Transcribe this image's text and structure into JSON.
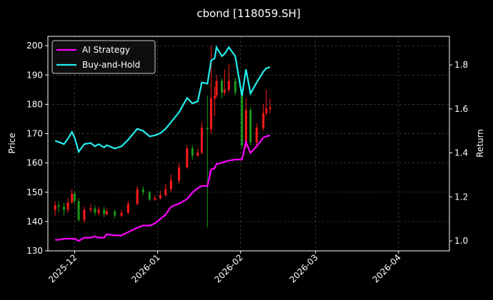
{
  "chart_data": {
    "type": "candlestick",
    "title": "cbond [118059.SH]",
    "ylabel": "Price",
    "y2label": "Return",
    "x": [
      2.7,
      4,
      6,
      7.5,
      9,
      10,
      11.5,
      13.6,
      16,
      17.6,
      19,
      21,
      22,
      25,
      27.5,
      30,
      33.4,
      35.6,
      38,
      40,
      42,
      44,
      46,
      49,
      52,
      54,
      56,
      57.5,
      59.6,
      61,
      62.3,
      63,
      65,
      66,
      67.6,
      70,
      72.5,
      74,
      75.7,
      78,
      80.5,
      81.6,
      83
    ],
    "xlim": [
      0,
      150
    ],
    "xticks": [
      {
        "value": 10,
        "label": "2025-12"
      },
      {
        "value": 41,
        "label": "2026-01"
      },
      {
        "value": 72,
        "label": "2026-02"
      },
      {
        "value": 100,
        "label": "2026-03"
      },
      {
        "value": 131,
        "label": "2026-04"
      }
    ],
    "open": [
      144,
      145.5,
      145,
      144,
      146.5,
      149.5,
      147,
      140.5,
      144,
      144.5,
      143,
      144,
      142.5,
      143.5,
      142,
      143,
      146,
      151,
      150,
      147.5,
      148,
      149,
      151,
      154,
      158.5,
      165,
      162.5,
      163.5,
      172,
      171.5,
      182,
      183,
      188,
      184,
      185,
      188,
      184,
      166,
      178,
      167,
      172,
      177,
      178.5
    ],
    "high": [
      147,
      147,
      146.5,
      148,
      151,
      150.5,
      148,
      145,
      146,
      145.5,
      145,
      145,
      144.5,
      144,
      144,
      147,
      152,
      152,
      150.5,
      149,
      150.5,
      153,
      156,
      160,
      166,
      166,
      165,
      174,
      183,
      200,
      186,
      190,
      189,
      192,
      194,
      189,
      185,
      182,
      179,
      173.5,
      180,
      185,
      182
    ],
    "low": [
      142,
      143,
      142,
      143,
      146,
      146,
      140,
      139.5,
      143,
      142,
      142,
      141.5,
      142,
      141,
      141.5,
      142.5,
      145.5,
      149,
      147,
      147,
      147.5,
      148.5,
      150,
      153,
      158,
      161,
      162,
      163,
      138,
      170,
      176,
      182,
      182,
      183,
      184,
      183,
      165,
      165,
      166,
      166,
      171,
      176,
      177
    ],
    "close": [
      145.5,
      145,
      144,
      146.5,
      149.5,
      147,
      140.5,
      144,
      144.5,
      143,
      144,
      142.5,
      143.5,
      142,
      143,
      146,
      151,
      150,
      147.5,
      148,
      149,
      151,
      154,
      158.5,
      165,
      162.5,
      163.5,
      172,
      171.5,
      182,
      183,
      188,
      184,
      185,
      188,
      184,
      166,
      178,
      167,
      172,
      177,
      178.5,
      179
    ],
    "up_color": "#ff1a1a",
    "down_color": "#1a9a1a",
    "series": [
      {
        "name": "AI Strategy",
        "color": "#ff00ff",
        "axis": "y2",
        "values": [
          1.005,
          1.005,
          1.01,
          1.01,
          1.01,
          1.01,
          1.0,
          1.015,
          1.015,
          1.02,
          1.015,
          1.015,
          1.03,
          1.025,
          1.025,
          1.04,
          1.06,
          1.07,
          1.07,
          1.08,
          1.1,
          1.12,
          1.155,
          1.17,
          1.19,
          1.22,
          1.24,
          1.25,
          1.25,
          1.325,
          1.33,
          1.35,
          1.355,
          1.36,
          1.365,
          1.37,
          1.37,
          1.45,
          1.4,
          1.43,
          1.47,
          1.475,
          1.48
        ]
      },
      {
        "name": "Buy-and-Hold",
        "color": "#22eeee",
        "axis": "y2",
        "values": [
          1.455,
          1.45,
          1.44,
          1.465,
          1.495,
          1.47,
          1.405,
          1.44,
          1.445,
          1.43,
          1.44,
          1.425,
          1.435,
          1.42,
          1.43,
          1.46,
          1.51,
          1.5,
          1.475,
          1.48,
          1.49,
          1.51,
          1.54,
          1.585,
          1.65,
          1.625,
          1.635,
          1.72,
          1.715,
          1.82,
          1.83,
          1.88,
          1.84,
          1.85,
          1.88,
          1.84,
          1.66,
          1.78,
          1.67,
          1.72,
          1.77,
          1.785,
          1.79
        ]
      }
    ],
    "ylim": [
      130,
      203.2
    ],
    "yticks": [
      130,
      140,
      150,
      160,
      170,
      180,
      190,
      200
    ],
    "y2lim": [
      0.955,
      1.93
    ],
    "y2ticks": [
      {
        "value": 1,
        "label": "1.0"
      },
      1.2,
      1.4,
      1.6,
      1.8
    ],
    "grid": true,
    "legend": "upper left"
  }
}
